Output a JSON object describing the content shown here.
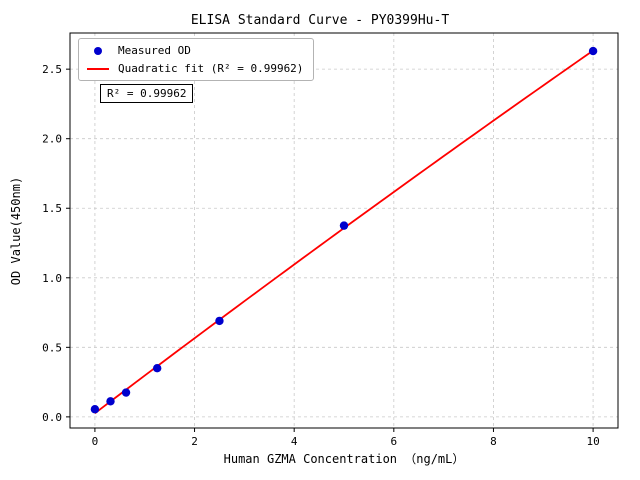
{
  "chart_data": {
    "type": "scatter",
    "title": "ELISA Standard Curve - PY0399Hu-T",
    "xlabel": "Human GZMA Concentration （ng/mL）",
    "ylabel": "OD Value(450nm)",
    "xlim": [
      -0.5,
      10.5
    ],
    "ylim": [
      -0.08,
      2.76
    ],
    "xticks": [
      0,
      2,
      4,
      6,
      8,
      10
    ],
    "xtick_labels": [
      "0",
      "2",
      "4",
      "6",
      "8",
      "10"
    ],
    "yticks": [
      0,
      0.5,
      1,
      1.5,
      2,
      2.5
    ],
    "ytick_labels": [
      "0.0",
      "0.5",
      "1.0",
      "1.5",
      "2.0",
      "2.5"
    ],
    "grid": "dashed",
    "grid_color": "#c9c9c9",
    "series": [
      {
        "name": "Measured OD",
        "type": "scatter",
        "color": "#0000cd",
        "x": [
          0,
          0.313,
          0.625,
          1.25,
          2.5,
          5,
          10
        ],
        "y": [
          0.055,
          0.112,
          0.175,
          0.35,
          0.69,
          1.375,
          2.63
        ]
      },
      {
        "name": "Quadratic fit (R² = 0.99962)",
        "type": "quadratic-fit-line",
        "color": "#ff0000",
        "fit_of_series": 0
      }
    ],
    "legend": {
      "position": "upper-left",
      "entries": [
        {
          "marker": "dot",
          "color": "#0000cd",
          "label": "Measured OD"
        },
        {
          "marker": "line",
          "color": "#ff0000",
          "label": "Quadratic fit (R² = 0.99962)"
        }
      ]
    },
    "annotation": {
      "text": "R² = 0.99962"
    },
    "r_squared": 0.99962
  }
}
